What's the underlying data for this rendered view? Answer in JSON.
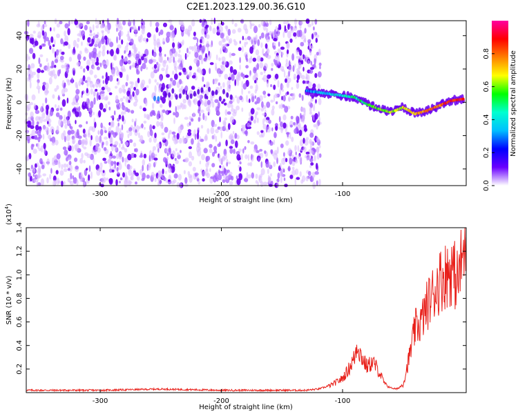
{
  "title": "C2E1.2023.129.00.36.G10",
  "chart_data": [
    {
      "type": "heatmap",
      "xlabel": "Height of straight line (km)",
      "ylabel": "Frequency (Hz)",
      "xlim": [
        -361,
        2
      ],
      "ylim": [
        -50,
        49
      ],
      "xticks": [
        -300,
        -200,
        -100
      ],
      "yticks": [
        -40,
        -20,
        0,
        20,
        40
      ],
      "noise_extent_x": [
        -361,
        -124
      ],
      "signal_ridge": [
        {
          "x": -130,
          "y": 7
        },
        {
          "x": -120,
          "y": 6
        },
        {
          "x": -110,
          "y": 5
        },
        {
          "x": -100,
          "y": 4
        },
        {
          "x": -90,
          "y": 3
        },
        {
          "x": -80,
          "y": -1
        },
        {
          "x": -70,
          "y": -4
        },
        {
          "x": -60,
          "y": -6
        },
        {
          "x": -50,
          "y": -3
        },
        {
          "x": -40,
          "y": -7
        },
        {
          "x": -30,
          "y": -5
        },
        {
          "x": -20,
          "y": -2
        },
        {
          "x": -10,
          "y": 1
        },
        {
          "x": 0,
          "y": 2
        }
      ],
      "colorbar": {
        "label": "Normalized spectral amplitude",
        "range": [
          0,
          1
        ],
        "ticks": [
          "0.0",
          "0.2",
          "0.4",
          "0.6",
          "0.8"
        ],
        "stops": [
          "#ffffff",
          "#6a00ff",
          "#0000ff",
          "#00bfff",
          "#00ffd0",
          "#00ff00",
          "#ffff00",
          "#ff8000",
          "#ff0000",
          "#ff00a0"
        ]
      }
    },
    {
      "type": "line",
      "xlabel": "Height of straight line (km)",
      "ylabel": "SNR (10 * v/v)",
      "multiplier_label": "(x10",
      "multiplier_exp": "4",
      "multiplier_close": ")",
      "xlim": [
        -361,
        2
      ],
      "ylim": [
        0,
        1.4
      ],
      "xticks": [
        -300,
        -200,
        -100
      ],
      "yticks": [
        "0.2",
        "0.4",
        "0.6",
        "0.8",
        "1.0",
        "1.2",
        "1.4"
      ],
      "series": [
        {
          "color": "#e8201a",
          "x": [
            -361,
            -300,
            -250,
            -200,
            -150,
            -130,
            -120,
            -110,
            -100,
            -95,
            -90,
            -88,
            -85,
            -80,
            -75,
            -70,
            -65,
            -60,
            -55,
            -50,
            -45,
            -40,
            -35,
            -30,
            -25,
            -20,
            -15,
            -10,
            -5,
            0,
            2
          ],
          "y": [
            0.02,
            0.02,
            0.03,
            0.02,
            0.02,
            0.02,
            0.03,
            0.06,
            0.12,
            0.2,
            0.3,
            0.42,
            0.32,
            0.22,
            0.26,
            0.18,
            0.07,
            0.04,
            0.03,
            0.07,
            0.3,
            0.55,
            0.6,
            0.75,
            0.85,
            0.95,
            1.0,
            1.05,
            0.95,
            1.2,
            1.38
          ]
        }
      ]
    }
  ]
}
